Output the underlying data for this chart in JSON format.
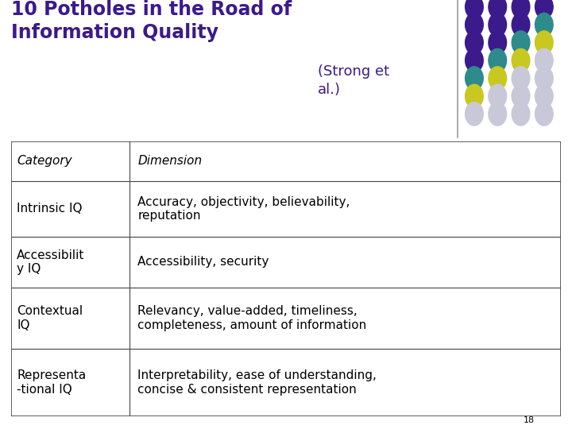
{
  "title_bold": "10 Potholes in the Road of\nInformation Quality",
  "title_suffix": " (Strong et\nal.)",
  "background_color": "#ffffff",
  "title_color": "#3B1A8C",
  "table_header": [
    "Category",
    "Dimension"
  ],
  "table_rows": [
    [
      "Intrinsic IQ",
      "Accuracy, objectivity, believability,\nreputation"
    ],
    [
      "Accessibilit\ny IQ",
      "Accessibility, security"
    ],
    [
      "Contextual\nIQ",
      "Relevancy, value-added, timeliness,\ncompleteness, amount of information"
    ],
    [
      "Representa\n-tional IQ",
      "Interpretability, ease of understanding,\nconcise & consistent representation"
    ]
  ],
  "col_split": 0.215,
  "page_number": "18",
  "dot_grid": [
    [
      "#3B1A8C",
      "#3B1A8C",
      "#3B1A8C",
      "#3B1A8C"
    ],
    [
      "#3B1A8C",
      "#3B1A8C",
      "#3B1A8C",
      "#2E8B8B"
    ],
    [
      "#3B1A8C",
      "#3B1A8C",
      "#2E8B8B",
      "#C8C820"
    ],
    [
      "#3B1A8C",
      "#2E8B8B",
      "#C8C820",
      "#C8C8D8"
    ],
    [
      "#2E8B8B",
      "#C8C820",
      "#C8C8D8",
      "#C8C8D8"
    ],
    [
      "#C8C820",
      "#C8C8D8",
      "#C8C8D8",
      "#C8C8D8"
    ],
    [
      "#C8C8D8",
      "#C8C8D8",
      "#C8C8D8",
      "#C8C8D8"
    ]
  ],
  "title_fontsize": 17,
  "suffix_fontsize": 13,
  "table_fontsize": 11
}
